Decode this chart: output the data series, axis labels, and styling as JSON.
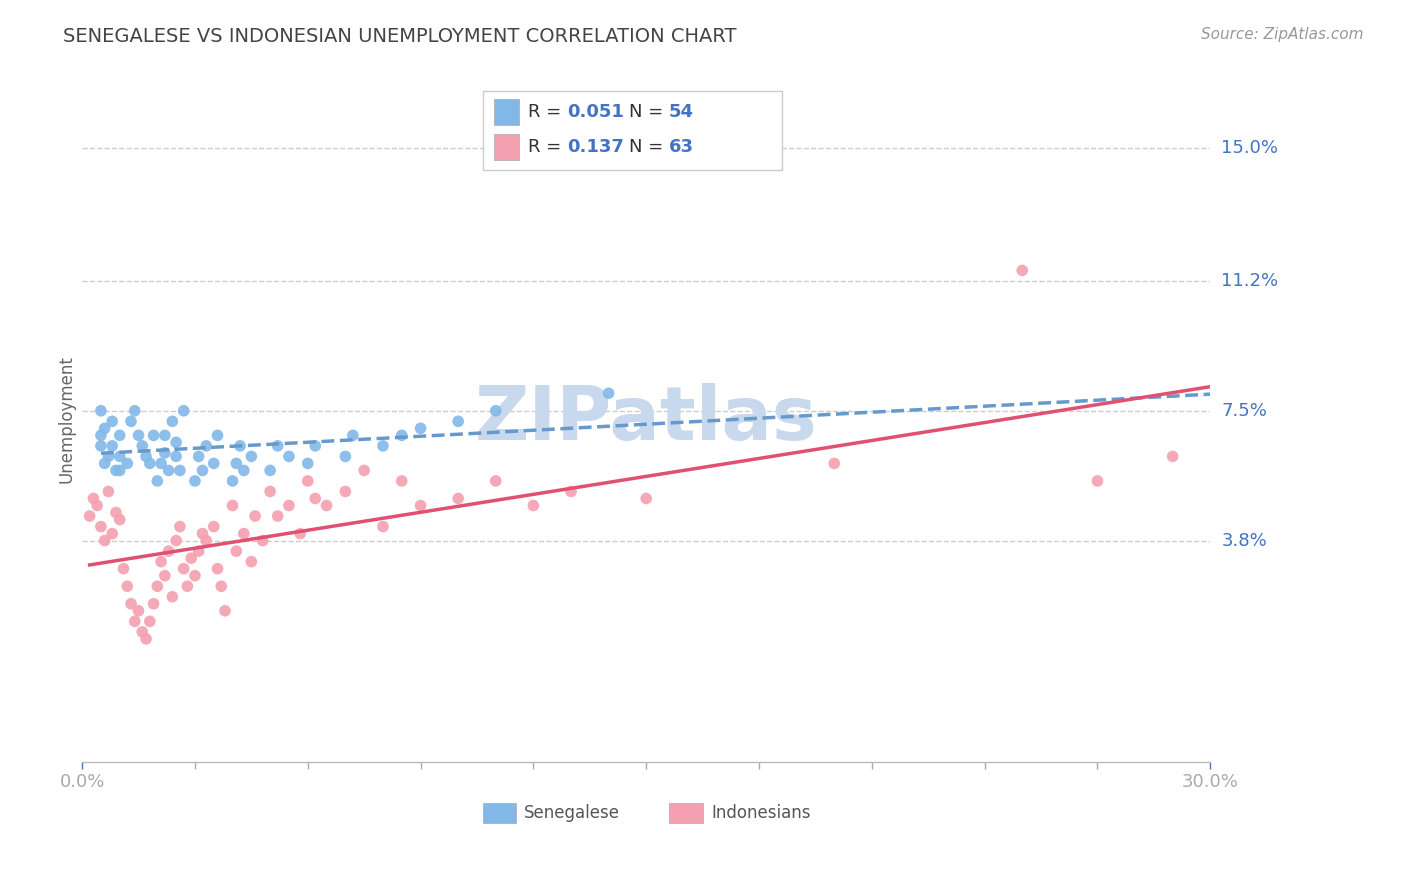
{
  "title": "SENEGALESE VS INDONESIAN UNEMPLOYMENT CORRELATION CHART",
  "source": "Source: ZipAtlas.com",
  "ylabel": "Unemployment",
  "xlim": [
    0.0,
    0.3
  ],
  "ylim": [
    -0.025,
    0.17
  ],
  "xticks": [
    0.0,
    0.03,
    0.06,
    0.09,
    0.12,
    0.15,
    0.18,
    0.21,
    0.24,
    0.27,
    0.3
  ],
  "xtick_labels": [
    "0.0%",
    "",
    "",
    "",
    "",
    "",
    "",
    "",
    "",
    "",
    "30.0%"
  ],
  "ytick_vals": [
    0.038,
    0.075,
    0.112,
    0.15
  ],
  "ytick_labels": [
    "3.8%",
    "7.5%",
    "11.2%",
    "15.0%"
  ],
  "senegalese_R": 0.051,
  "senegalese_N": 54,
  "indonesian_R": 0.137,
  "indonesian_N": 63,
  "blue_color": "#82b8e8",
  "blue_line_color": "#6699cc",
  "pink_color": "#f4a0b0",
  "pink_line_color": "#e05070",
  "title_color": "#444444",
  "axis_color": "#4472C4",
  "watermark_color": "#c8d8ed",
  "senegalese_x": [
    0.005,
    0.005,
    0.005,
    0.006,
    0.006,
    0.007,
    0.008,
    0.008,
    0.009,
    0.01,
    0.01,
    0.01,
    0.012,
    0.013,
    0.014,
    0.015,
    0.016,
    0.017,
    0.018,
    0.019,
    0.02,
    0.021,
    0.022,
    0.022,
    0.023,
    0.024,
    0.025,
    0.025,
    0.026,
    0.027,
    0.03,
    0.031,
    0.032,
    0.033,
    0.035,
    0.036,
    0.04,
    0.041,
    0.042,
    0.043,
    0.045,
    0.05,
    0.052,
    0.055,
    0.06,
    0.062,
    0.07,
    0.072,
    0.08,
    0.085,
    0.09,
    0.1,
    0.11,
    0.14
  ],
  "senegalese_y": [
    0.068,
    0.065,
    0.075,
    0.06,
    0.07,
    0.062,
    0.072,
    0.065,
    0.058,
    0.058,
    0.062,
    0.068,
    0.06,
    0.072,
    0.075,
    0.068,
    0.065,
    0.062,
    0.06,
    0.068,
    0.055,
    0.06,
    0.063,
    0.068,
    0.058,
    0.072,
    0.062,
    0.066,
    0.058,
    0.075,
    0.055,
    0.062,
    0.058,
    0.065,
    0.06,
    0.068,
    0.055,
    0.06,
    0.065,
    0.058,
    0.062,
    0.058,
    0.065,
    0.062,
    0.06,
    0.065,
    0.062,
    0.068,
    0.065,
    0.068,
    0.07,
    0.072,
    0.075,
    0.08
  ],
  "indonesian_x": [
    0.002,
    0.003,
    0.004,
    0.005,
    0.006,
    0.007,
    0.008,
    0.009,
    0.01,
    0.011,
    0.012,
    0.013,
    0.014,
    0.015,
    0.016,
    0.017,
    0.018,
    0.019,
    0.02,
    0.021,
    0.022,
    0.023,
    0.024,
    0.025,
    0.026,
    0.027,
    0.028,
    0.029,
    0.03,
    0.031,
    0.032,
    0.033,
    0.035,
    0.036,
    0.037,
    0.038,
    0.04,
    0.041,
    0.043,
    0.045,
    0.046,
    0.048,
    0.05,
    0.052,
    0.055,
    0.058,
    0.06,
    0.062,
    0.065,
    0.07,
    0.075,
    0.08,
    0.085,
    0.09,
    0.1,
    0.11,
    0.12,
    0.13,
    0.15,
    0.2,
    0.25,
    0.27,
    0.29
  ],
  "indonesian_y": [
    0.045,
    0.05,
    0.048,
    0.042,
    0.038,
    0.052,
    0.04,
    0.046,
    0.044,
    0.03,
    0.025,
    0.02,
    0.015,
    0.018,
    0.012,
    0.01,
    0.015,
    0.02,
    0.025,
    0.032,
    0.028,
    0.035,
    0.022,
    0.038,
    0.042,
    0.03,
    0.025,
    0.033,
    0.028,
    0.035,
    0.04,
    0.038,
    0.042,
    0.03,
    0.025,
    0.018,
    0.048,
    0.035,
    0.04,
    0.032,
    0.045,
    0.038,
    0.052,
    0.045,
    0.048,
    0.04,
    0.055,
    0.05,
    0.048,
    0.052,
    0.058,
    0.042,
    0.055,
    0.048,
    0.05,
    0.055,
    0.048,
    0.052,
    0.05,
    0.06,
    0.115,
    0.055,
    0.062
  ]
}
